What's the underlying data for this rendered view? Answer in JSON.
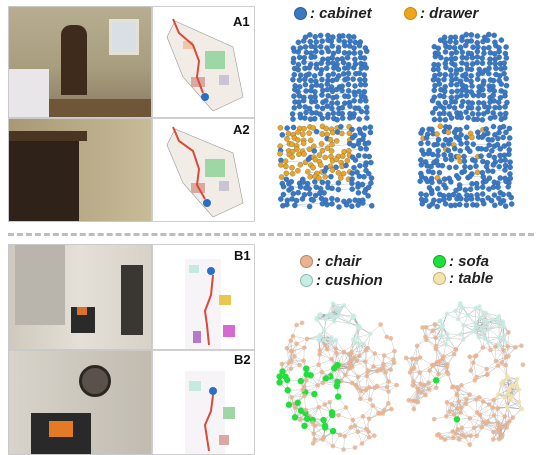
{
  "panels": {
    "a1": "A1",
    "a2": "A2",
    "b1": "B1",
    "b2": "B2"
  },
  "legend_a": [
    {
      "label": ": cabinet",
      "color": "#3a78c2"
    },
    {
      "label": ": drawer",
      "color": "#f0a419"
    }
  ],
  "legend_b": [
    {
      "label": ": chair",
      "color": "#e9b391"
    },
    {
      "label": ": cushion",
      "color": "#c6ece3"
    },
    {
      "label": ": sofa",
      "color": "#1fe03b"
    },
    {
      "label": ": table",
      "color": "#f5e3ad"
    }
  ]
}
